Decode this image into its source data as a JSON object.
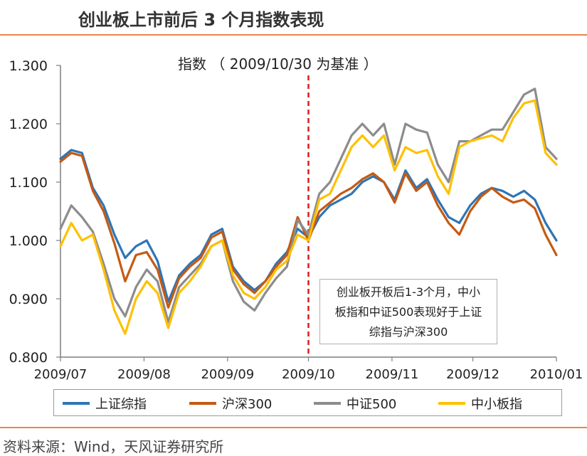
{
  "header": {
    "title": "创业板上市前后 3 个月指数表现"
  },
  "footer": {
    "source": "资料来源：Wind，天风证券研究所"
  },
  "colors": {
    "accent": "#e6854a",
    "vline": "#d81e1e"
  },
  "chart_data": {
    "type": "line",
    "title": "指数 （ 2009/10/30 为基准 ）",
    "xlabel": "",
    "ylabel": "",
    "x_ticks": [
      "2009/07",
      "2009/08",
      "2009/09",
      "2009/10",
      "2009/11",
      "2009/12",
      "2010/01"
    ],
    "y_ticks": [
      "0.800",
      "0.900",
      "1.000",
      "1.100",
      "1.200",
      "1.300"
    ],
    "ylim": [
      0.8,
      1.3
    ],
    "xlim": [
      "2009-07-01",
      "2010-01-01"
    ],
    "grid": false,
    "legend_position": "bottom",
    "reference_line": {
      "x": "2009-10-01",
      "style": "dashed"
    },
    "annotation": {
      "lines": [
        "创业板开板后1-3个月，中小",
        "板指和中证500表现好于上证",
        "综指与沪深300"
      ]
    },
    "series": [
      {
        "name": "上证综指",
        "color": "#2e75b6",
        "x": [
          "2009-07-01",
          "2009-07-05",
          "2009-07-09",
          "2009-07-13",
          "2009-07-17",
          "2009-07-21",
          "2009-07-25",
          "2009-07-29",
          "2009-08-02",
          "2009-08-06",
          "2009-08-10",
          "2009-08-14",
          "2009-08-18",
          "2009-08-22",
          "2009-08-26",
          "2009-08-30",
          "2009-09-03",
          "2009-09-07",
          "2009-09-11",
          "2009-09-15",
          "2009-09-19",
          "2009-09-23",
          "2009-09-27",
          "2009-10-01",
          "2009-10-05",
          "2009-10-09",
          "2009-10-13",
          "2009-10-17",
          "2009-10-21",
          "2009-10-25",
          "2009-10-29",
          "2009-11-02",
          "2009-11-06",
          "2009-11-10",
          "2009-11-14",
          "2009-11-18",
          "2009-11-22",
          "2009-11-26",
          "2009-11-30",
          "2009-12-04",
          "2009-12-08",
          "2009-12-12",
          "2009-12-16",
          "2009-12-20",
          "2009-12-24",
          "2009-12-28",
          "2010-01-01"
        ],
        "y": [
          1.14,
          1.155,
          1.15,
          1.09,
          1.06,
          1.01,
          0.97,
          0.99,
          1.0,
          0.965,
          0.895,
          0.94,
          0.96,
          0.975,
          1.01,
          1.02,
          0.955,
          0.93,
          0.915,
          0.93,
          0.96,
          0.98,
          1.02,
          1.005,
          1.04,
          1.06,
          1.07,
          1.08,
          1.1,
          1.11,
          1.1,
          1.07,
          1.12,
          1.09,
          1.105,
          1.07,
          1.04,
          1.03,
          1.06,
          1.08,
          1.09,
          1.085,
          1.075,
          1.085,
          1.07,
          1.03,
          1.0
        ]
      },
      {
        "name": "沪深300",
        "color": "#c55a11",
        "x": [
          "2009-07-01",
          "2009-07-05",
          "2009-07-09",
          "2009-07-13",
          "2009-07-17",
          "2009-07-21",
          "2009-07-25",
          "2009-07-29",
          "2009-08-02",
          "2009-08-06",
          "2009-08-10",
          "2009-08-14",
          "2009-08-18",
          "2009-08-22",
          "2009-08-26",
          "2009-08-30",
          "2009-09-03",
          "2009-09-07",
          "2009-09-11",
          "2009-09-15",
          "2009-09-19",
          "2009-09-23",
          "2009-09-27",
          "2009-10-01",
          "2009-10-05",
          "2009-10-09",
          "2009-10-13",
          "2009-10-17",
          "2009-10-21",
          "2009-10-25",
          "2009-10-29",
          "2009-11-02",
          "2009-11-06",
          "2009-11-10",
          "2009-11-14",
          "2009-11-18",
          "2009-11-22",
          "2009-11-26",
          "2009-11-30",
          "2009-12-04",
          "2009-12-08",
          "2009-12-12",
          "2009-12-16",
          "2009-12-20",
          "2009-12-24",
          "2009-12-28",
          "2010-01-01"
        ],
        "y": [
          1.135,
          1.15,
          1.145,
          1.085,
          1.05,
          0.995,
          0.93,
          0.975,
          0.98,
          0.95,
          0.885,
          0.935,
          0.955,
          0.97,
          1.005,
          1.015,
          0.95,
          0.925,
          0.91,
          0.93,
          0.955,
          0.975,
          1.04,
          1.0,
          1.05,
          1.065,
          1.08,
          1.09,
          1.105,
          1.115,
          1.1,
          1.065,
          1.115,
          1.085,
          1.1,
          1.06,
          1.03,
          1.01,
          1.05,
          1.075,
          1.09,
          1.075,
          1.065,
          1.07,
          1.055,
          1.01,
          0.975
        ]
      },
      {
        "name": "中证500",
        "color": "#8c8c8c",
        "x": [
          "2009-07-01",
          "2009-07-05",
          "2009-07-09",
          "2009-07-13",
          "2009-07-17",
          "2009-07-21",
          "2009-07-25",
          "2009-07-29",
          "2009-08-02",
          "2009-08-06",
          "2009-08-10",
          "2009-08-14",
          "2009-08-18",
          "2009-08-22",
          "2009-08-26",
          "2009-08-30",
          "2009-09-03",
          "2009-09-07",
          "2009-09-11",
          "2009-09-15",
          "2009-09-19",
          "2009-09-23",
          "2009-09-27",
          "2009-10-01",
          "2009-10-05",
          "2009-10-09",
          "2009-10-13",
          "2009-10-17",
          "2009-10-21",
          "2009-10-25",
          "2009-10-29",
          "2009-11-02",
          "2009-11-06",
          "2009-11-10",
          "2009-11-14",
          "2009-11-18",
          "2009-11-22",
          "2009-11-26",
          "2009-11-30",
          "2009-12-04",
          "2009-12-08",
          "2009-12-12",
          "2009-12-16",
          "2009-12-20",
          "2009-12-24",
          "2009-12-28",
          "2010-01-01"
        ],
        "y": [
          1.02,
          1.06,
          1.04,
          1.015,
          0.96,
          0.9,
          0.87,
          0.92,
          0.95,
          0.93,
          0.86,
          0.92,
          0.94,
          0.96,
          0.99,
          1.0,
          0.93,
          0.895,
          0.88,
          0.91,
          0.935,
          0.955,
          1.035,
          1.01,
          1.08,
          1.1,
          1.14,
          1.18,
          1.2,
          1.18,
          1.2,
          1.13,
          1.2,
          1.19,
          1.185,
          1.13,
          1.1,
          1.17,
          1.17,
          1.18,
          1.19,
          1.19,
          1.22,
          1.25,
          1.26,
          1.16,
          1.14
        ]
      },
      {
        "name": "中小板指",
        "color": "#ffc000",
        "x": [
          "2009-07-01",
          "2009-07-05",
          "2009-07-09",
          "2009-07-13",
          "2009-07-17",
          "2009-07-21",
          "2009-07-25",
          "2009-07-29",
          "2009-08-02",
          "2009-08-06",
          "2009-08-10",
          "2009-08-14",
          "2009-08-18",
          "2009-08-22",
          "2009-08-26",
          "2009-08-30",
          "2009-09-03",
          "2009-09-07",
          "2009-09-11",
          "2009-09-15",
          "2009-09-19",
          "2009-09-23",
          "2009-09-27",
          "2009-10-01",
          "2009-10-05",
          "2009-10-09",
          "2009-10-13",
          "2009-10-17",
          "2009-10-21",
          "2009-10-25",
          "2009-10-29",
          "2009-11-02",
          "2009-11-06",
          "2009-11-10",
          "2009-11-14",
          "2009-11-18",
          "2009-11-22",
          "2009-11-26",
          "2009-11-30",
          "2009-12-04",
          "2009-12-08",
          "2009-12-12",
          "2009-12-16",
          "2009-12-20",
          "2009-12-24",
          "2009-12-28",
          "2010-01-01"
        ],
        "y": [
          0.99,
          1.03,
          1.0,
          1.01,
          0.95,
          0.88,
          0.84,
          0.9,
          0.93,
          0.91,
          0.85,
          0.91,
          0.93,
          0.955,
          0.99,
          1.0,
          0.94,
          0.91,
          0.9,
          0.92,
          0.95,
          0.965,
          1.01,
          1.0,
          1.07,
          1.08,
          1.12,
          1.16,
          1.18,
          1.16,
          1.18,
          1.12,
          1.16,
          1.15,
          1.155,
          1.11,
          1.08,
          1.16,
          1.17,
          1.175,
          1.18,
          1.17,
          1.21,
          1.235,
          1.24,
          1.15,
          1.13
        ]
      }
    ]
  }
}
